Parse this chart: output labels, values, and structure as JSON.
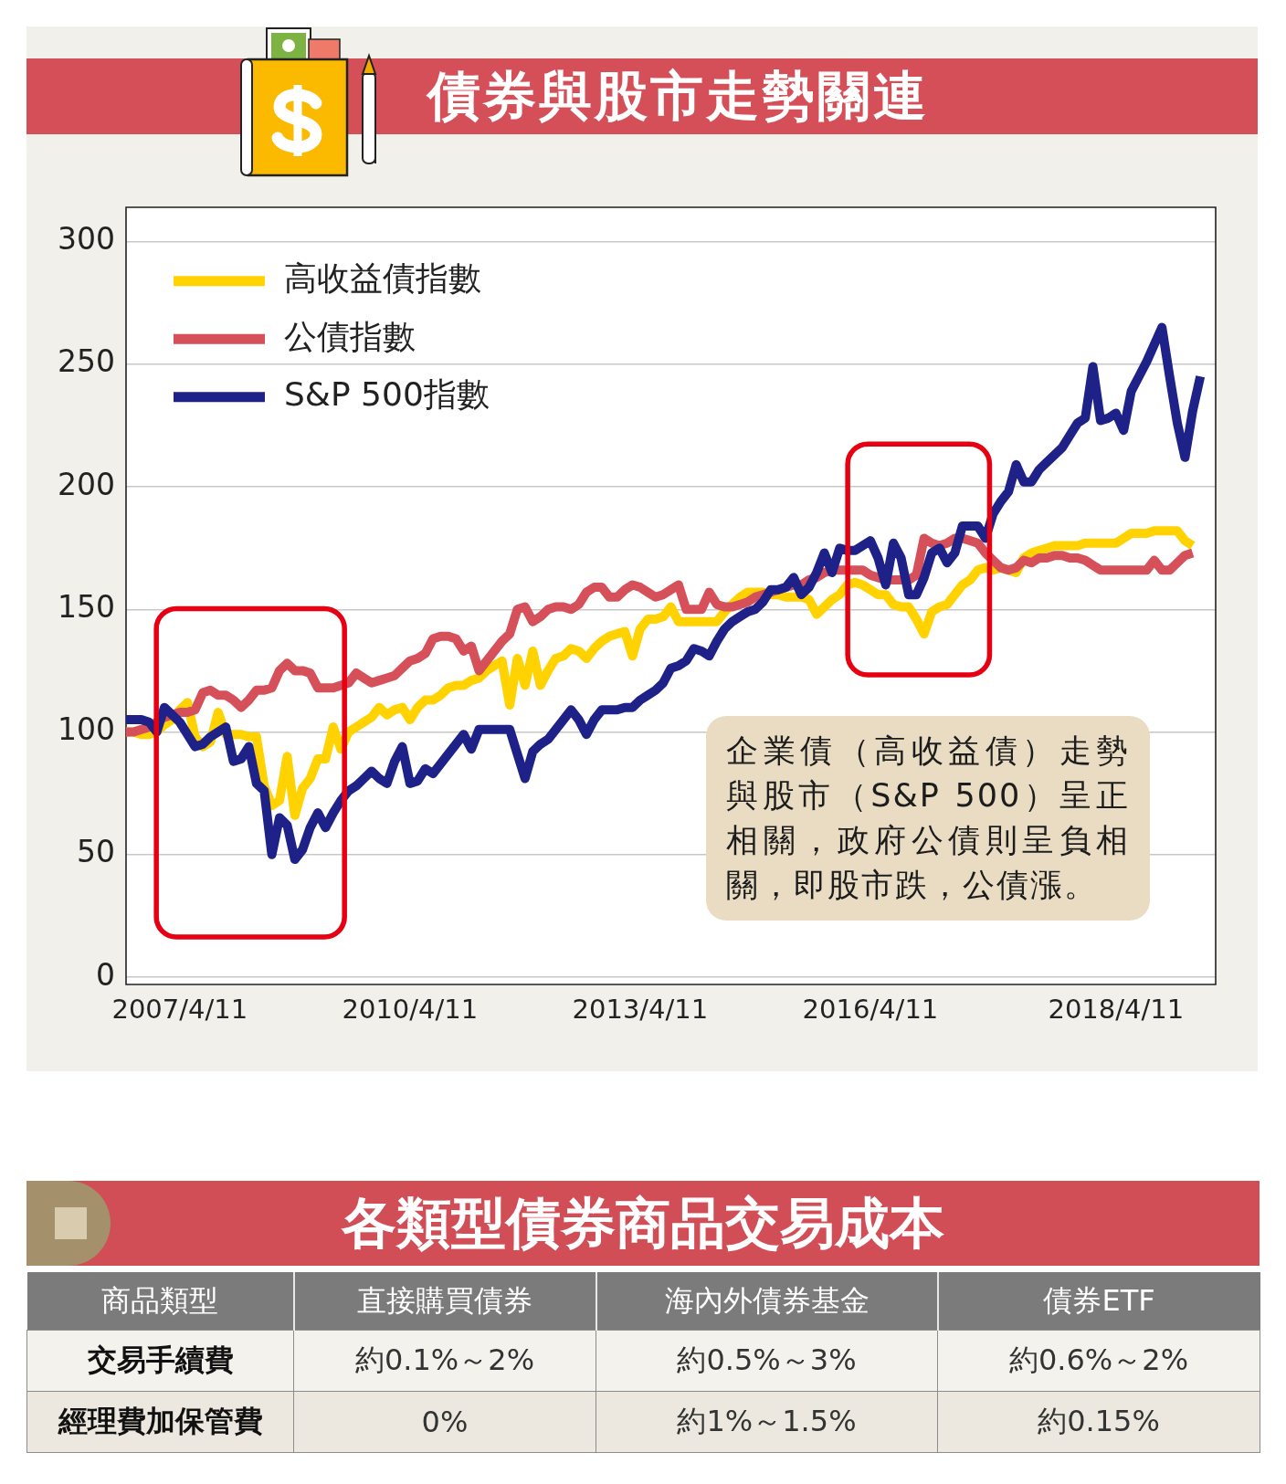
{
  "chart_data": [
    {
      "type": "line",
      "title": "債券與股市走勢關連",
      "categories": [
        null,
        null,
        null,
        null,
        null,
        null,
        null,
        "2007/4/11",
        null,
        null,
        null,
        null,
        null,
        null,
        null,
        null,
        null,
        null,
        null,
        null,
        null,
        null,
        null,
        null,
        null,
        null,
        null,
        null,
        null,
        null,
        null,
        null,
        null,
        null,
        null,
        null,
        null,
        "2010/4/11",
        null,
        null,
        null,
        null,
        null,
        null,
        null,
        null,
        null,
        null,
        null,
        null,
        null,
        null,
        null,
        null,
        null,
        null,
        null,
        null,
        null,
        null,
        null,
        null,
        null,
        null,
        null,
        null,
        null,
        "2013/4/11",
        null,
        null,
        null,
        null,
        null,
        null,
        null,
        null,
        null,
        null,
        null,
        null,
        null,
        null,
        null,
        null,
        null,
        null,
        null,
        null,
        null,
        null,
        null,
        null,
        null,
        null,
        null,
        null,
        null,
        "2016/4/11",
        null,
        null,
        null,
        null,
        null,
        null,
        null,
        null,
        null,
        null,
        null,
        null,
        null,
        null,
        null,
        null,
        null,
        null,
        null,
        null,
        null,
        null,
        null,
        null,
        null,
        null,
        null,
        null,
        null,
        null,
        null,
        "2018/4/11",
        null,
        null,
        null,
        null,
        null,
        null,
        null,
        null,
        null,
        null,
        null,
        null,
        null
      ],
      "series": [
        {
          "name": "高收益債指數",
          "color": "#ffd200",
          "values": [
            100,
            100,
            99,
            99,
            100,
            103,
            105,
            109,
            112,
            98,
            94,
            96,
            108,
            99,
            99,
            99,
            98,
            98,
            78,
            70,
            72,
            90,
            66,
            77,
            81,
            89,
            89,
            102,
            93,
            100,
            102,
            104,
            106,
            110,
            107,
            109,
            110,
            105,
            110,
            113,
            113,
            115,
            118,
            119,
            119,
            121,
            122,
            125,
            127,
            129,
            111,
            130,
            119,
            133,
            119,
            125,
            130,
            131,
            134,
            133,
            130,
            134,
            137,
            139,
            140,
            141,
            131,
            142,
            146,
            146,
            147,
            151,
            145,
            145,
            145,
            145,
            145,
            145,
            149,
            152,
            155,
            157,
            157,
            157,
            156,
            156,
            155,
            155,
            155,
            154,
            148,
            151,
            154,
            156,
            160,
            161,
            160,
            158,
            156,
            156,
            152,
            151,
            151,
            146,
            140,
            149,
            151,
            152,
            156,
            160,
            162,
            166,
            167,
            166,
            167,
            166,
            165,
            171,
            173,
            174,
            175,
            176,
            176,
            176,
            176,
            177,
            177,
            177,
            177,
            177,
            179,
            181,
            181,
            181,
            182,
            182,
            182,
            182,
            178,
            176,
            null,
            null,
            null
          ]
        },
        {
          "name": "公債指數",
          "color": "#d6505a",
          "values": [
            100,
            100,
            101,
            102,
            104,
            106,
            107,
            108,
            108,
            109,
            116,
            117,
            115,
            115,
            113,
            110,
            113,
            117,
            117,
            118,
            125,
            128,
            125,
            125,
            124,
            118,
            118,
            118,
            119,
            120,
            124,
            122,
            120,
            121,
            122,
            123,
            126,
            129,
            130,
            132,
            138,
            139,
            139,
            138,
            133,
            135,
            125,
            129,
            133,
            137,
            140,
            150,
            151,
            145,
            147,
            150,
            151,
            151,
            150,
            152,
            157,
            159,
            159,
            155,
            155,
            158,
            160,
            159,
            157,
            155,
            156,
            158,
            160,
            150,
            150,
            150,
            157,
            152,
            151,
            151,
            152,
            153,
            155,
            156,
            157,
            158,
            159,
            160,
            160,
            162,
            163,
            165,
            166,
            166,
            166,
            166,
            166,
            164,
            163,
            162,
            162,
            162,
            162,
            164,
            179,
            177,
            176,
            177,
            179,
            179,
            178,
            177,
            173,
            170,
            167,
            166,
            167,
            170,
            169,
            171,
            171,
            172,
            172,
            171,
            171,
            170,
            168,
            166,
            166,
            166,
            166,
            166,
            166,
            166,
            170,
            166,
            166,
            169,
            172,
            173,
            null,
            null,
            null
          ]
        },
        {
          "name": "S&P 500指數",
          "color": "#1e2288",
          "values": [
            105,
            105,
            105,
            104,
            100,
            110,
            107,
            104,
            99,
            94,
            95,
            98,
            100,
            102,
            88,
            89,
            94,
            79,
            76,
            50,
            65,
            62,
            48,
            52,
            61,
            67,
            61,
            67,
            72,
            76,
            78,
            81,
            84,
            81,
            79,
            88,
            94,
            79,
            80,
            85,
            83,
            87,
            91,
            95,
            99,
            93,
            101,
            101,
            101,
            101,
            101,
            91,
            81,
            92,
            95,
            97,
            101,
            105,
            109,
            105,
            99,
            105,
            109,
            109,
            109,
            110,
            110,
            113,
            115,
            117,
            120,
            126,
            127,
            129,
            134,
            133,
            131,
            137,
            142,
            145,
            147,
            149,
            150,
            153,
            158,
            158,
            159,
            163,
            156,
            159,
            165,
            173,
            165,
            175,
            174,
            174,
            176,
            178,
            171,
            160,
            177,
            171,
            156,
            156,
            163,
            173,
            175,
            169,
            173,
            184,
            184,
            184,
            179,
            189,
            194,
            198,
            209,
            202,
            202,
            207,
            210,
            213,
            216,
            221,
            226,
            228,
            249,
            227,
            228,
            230,
            223,
            239,
            245,
            251,
            258,
            265,
            245,
            226,
            212,
            231,
            245,
            null,
            null
          ]
        }
      ],
      "ylim": [
        -3,
        314
      ],
      "yticks": [
        0,
        50,
        100,
        150,
        200,
        250,
        300
      ],
      "grid": "y",
      "legend": "top left",
      "annotations": [
        "企業債（高收益債）走勢與股市（S&P 500）呈正相關，政府公債則呈負相關，即股市跌，公債漲。"
      ]
    },
    {
      "type": "other",
      "title": "各類型債券商品交易成本",
      "xlabel": "商品類型",
      "categories": [
        "直接購買債券",
        "海內外債券基金",
        "債券ETF"
      ],
      "y_categories": [
        "交易手續費",
        "經理費加保管費"
      ],
      "cell_labels": [
        [
          "約0.1%～2%",
          "約0.5%～3%",
          "約0.6%～2%"
        ],
        [
          "0%",
          "約1%～1.5%",
          "約0.15%"
        ]
      ]
    }
  ]
}
